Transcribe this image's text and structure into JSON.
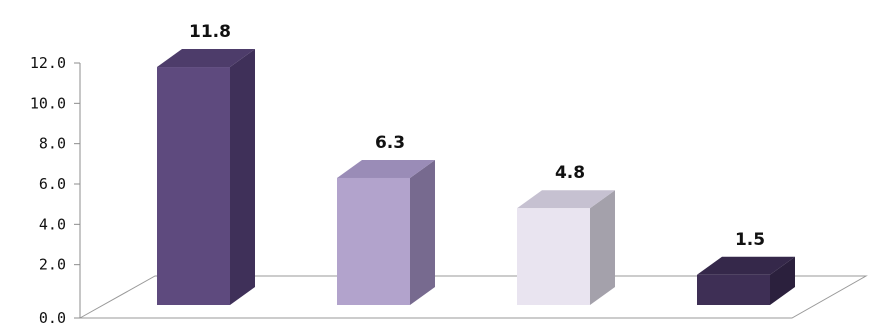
{
  "chart_data": {
    "type": "bar",
    "categories": [
      "",
      "",
      "",
      ""
    ],
    "values": [
      11.8,
      6.3,
      4.8,
      1.5
    ],
    "data_labels": [
      "11.8",
      "6.3",
      "4.8",
      "1.5"
    ],
    "title": "",
    "xlabel": "",
    "ylabel": "",
    "ylim": [
      0,
      12
    ],
    "yticks": [
      "0.0",
      "2.0",
      "4.0",
      "6.0",
      "8.0",
      "10.0",
      "12.0"
    ],
    "grid": false,
    "legend": "none",
    "style": "3d",
    "colors": [
      {
        "front": "#5e4a7e",
        "side": "#3f3059",
        "top": "#4d3c6a"
      },
      {
        "front": "#b2a3cc",
        "side": "#776a8f",
        "top": "#9a8cb7"
      },
      {
        "front": "#e9e4f0",
        "side": "#a4a1ab",
        "top": "#c6c1d1"
      },
      {
        "front": "#3e2f55",
        "side": "#2b203d",
        "top": "#35284a"
      }
    ]
  }
}
